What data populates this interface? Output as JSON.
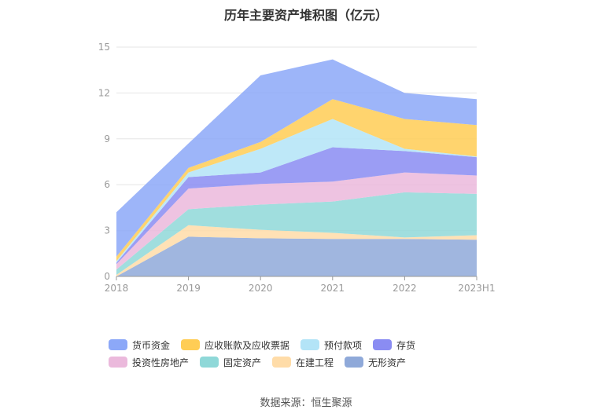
{
  "chart_data": {
    "type": "area",
    "stacked": true,
    "title": "历年主要资产堆积图（亿元）",
    "categories": [
      "2018",
      "2019",
      "2020",
      "2021",
      "2022",
      "2023H1"
    ],
    "ylim": [
      0,
      15
    ],
    "yticks": [
      0,
      3,
      6,
      9,
      12,
      15
    ],
    "grid": true,
    "legend_position": "bottom",
    "series": [
      {
        "name": "无形资产",
        "color": "#8fa9d9",
        "values": [
          0.0,
          2.6,
          2.5,
          2.45,
          2.45,
          2.4
        ]
      },
      {
        "name": "在建工程",
        "color": "#ffdca8",
        "values": [
          0.1,
          0.75,
          0.55,
          0.4,
          0.1,
          0.3
        ]
      },
      {
        "name": "固定资产",
        "color": "#8fd8d8",
        "values": [
          0.35,
          1.05,
          1.65,
          2.05,
          2.95,
          2.7
        ]
      },
      {
        "name": "投资性房地产",
        "color": "#ebb9dc",
        "values": [
          0.35,
          1.35,
          1.35,
          1.3,
          1.3,
          1.2
        ]
      },
      {
        "name": "存货",
        "color": "#8a8cf2",
        "values": [
          0.1,
          0.75,
          0.75,
          2.25,
          1.4,
          1.2
        ]
      },
      {
        "name": "预付款项",
        "color": "#b3e4f7",
        "values": [
          0.1,
          0.3,
          1.55,
          1.85,
          0.15,
          0.05
        ]
      },
      {
        "name": "应收账款及应收票据",
        "color": "#ffcd55",
        "values": [
          0.3,
          0.3,
          0.45,
          1.3,
          1.95,
          2.05
        ]
      },
      {
        "name": "货币资金",
        "color": "#8ca8f8",
        "values": [
          2.9,
          1.6,
          4.35,
          2.6,
          1.7,
          1.7
        ]
      }
    ]
  },
  "legend_order": [
    "货币资金",
    "应收账款及应收票据",
    "预付款项",
    "存货",
    "投资性房地产",
    "固定资产",
    "在建工程",
    "无形资产"
  ],
  "source": "数据来源：恒生聚源"
}
